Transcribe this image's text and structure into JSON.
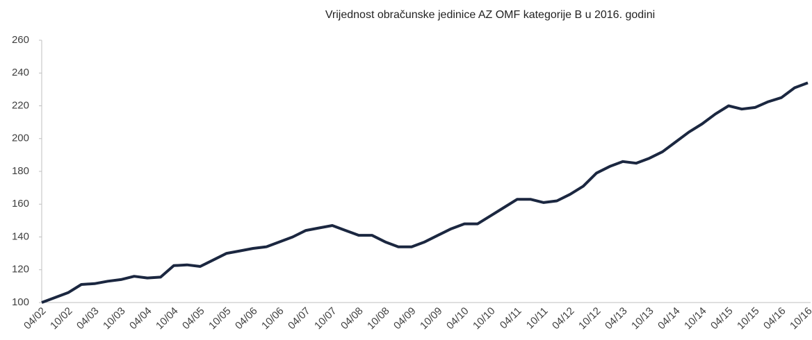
{
  "chart_data": {
    "type": "line",
    "title": "Vrijednost obračunske jedinice AZ OMF kategorije B u 2016. godini",
    "categories": [
      "04/02",
      null,
      "10/02",
      null,
      "04/03",
      null,
      "10/03",
      null,
      "04/04",
      null,
      "10/04",
      null,
      "04/05",
      null,
      "10/05",
      null,
      "04/06",
      null,
      "10/06",
      null,
      "04/07",
      null,
      "10/07",
      null,
      "04/08",
      null,
      "10/08",
      null,
      "04/09",
      null,
      "10/09",
      null,
      "04/10",
      null,
      "10/10",
      null,
      "04/11",
      null,
      "10/11",
      null,
      "04/12",
      null,
      "10/12",
      null,
      "04/13",
      null,
      "10/13",
      null,
      "04/14",
      null,
      "10/14",
      null,
      "04/15",
      null,
      "10/15",
      null,
      "04/16",
      null,
      "10/16"
    ],
    "series": [
      {
        "color": "#1b2740",
        "values": [
          100,
          103,
          106,
          111,
          111.5,
          113,
          114,
          116,
          115,
          115.5,
          122.5,
          123,
          122,
          126,
          130,
          131.5,
          133,
          134,
          137,
          140,
          144,
          145.5,
          147,
          144,
          141,
          141,
          137,
          134,
          134,
          137,
          141,
          145,
          148,
          148,
          153,
          158,
          163,
          163,
          161,
          162,
          166,
          171,
          179,
          183,
          186,
          185,
          188,
          192,
          198,
          204,
          209,
          215,
          220,
          218,
          219,
          222.5,
          225,
          231,
          234
        ]
      }
    ],
    "ylim": [
      100,
      260
    ],
    "yticks": [
      100,
      120,
      140,
      160,
      180,
      200,
      220,
      240,
      260
    ]
  }
}
